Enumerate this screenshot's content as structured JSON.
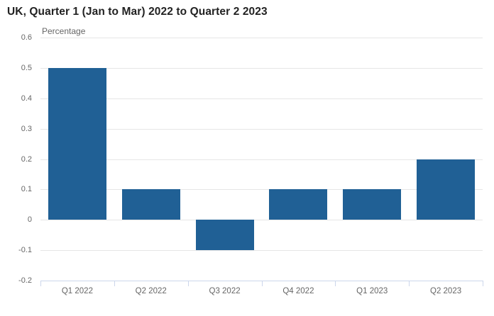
{
  "chart_data": {
    "type": "bar",
    "title": "UK, Quarter 1 (Jan to Mar) 2022 to Quarter 2 2023",
    "ylabel": "Percentage",
    "xlabel": "",
    "categories": [
      "Q1 2022",
      "Q2 2022",
      "Q3 2022",
      "Q4 2022",
      "Q1 2023",
      "Q2 2023"
    ],
    "values": [
      0.5,
      0.1,
      -0.1,
      0.1,
      0.1,
      0.2
    ],
    "ylim": [
      -0.2,
      0.6
    ],
    "yticks": [
      {
        "value": 0.6,
        "label": "0.6"
      },
      {
        "value": 0.5,
        "label": "0.5"
      },
      {
        "value": 0.4,
        "label": "0.4"
      },
      {
        "value": 0.3,
        "label": "0.3"
      },
      {
        "value": 0.2,
        "label": "0.2"
      },
      {
        "value": 0.1,
        "label": "0.1"
      },
      {
        "value": 0,
        "label": "0"
      },
      {
        "value": -0.1,
        "label": "-0.1"
      },
      {
        "value": -0.2,
        "label": "-0.2"
      }
    ],
    "grid": true,
    "legend_position": "none"
  },
  "colors": {
    "bar": "#206095",
    "gridline": "#e6e6e6",
    "axis_line": "#ccd6eb",
    "axis_label": "#666666",
    "title": "#222222"
  }
}
